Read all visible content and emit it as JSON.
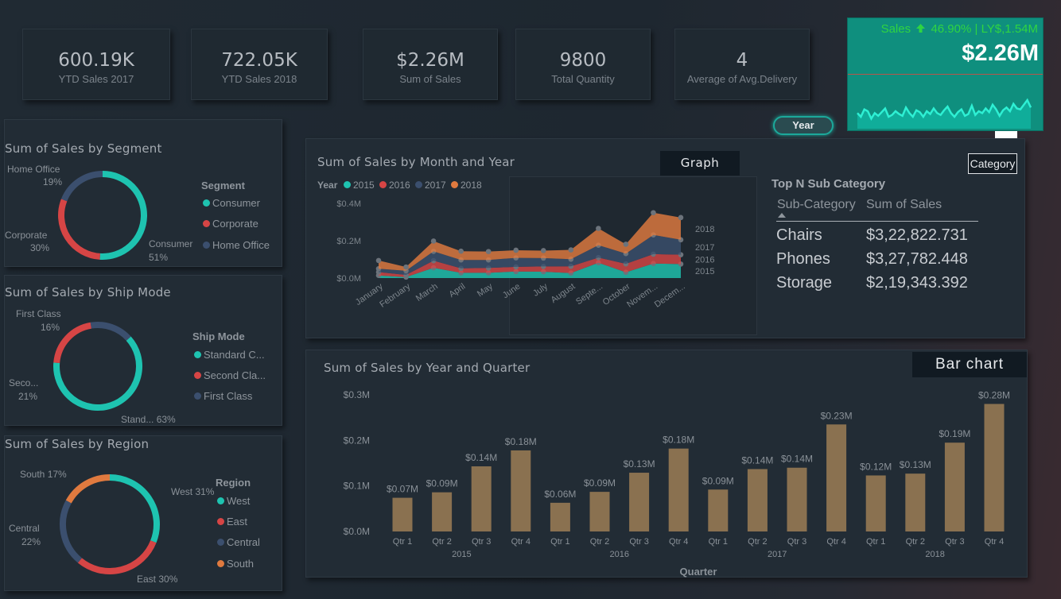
{
  "kpis": [
    {
      "value": "600.19K",
      "label": "YTD Sales 2017"
    },
    {
      "value": "722.05K",
      "label": "YTD Sales 2018"
    },
    {
      "value": "$2.26M",
      "label": "Sum of Sales"
    },
    {
      "value": "9800",
      "label": "Total Quantity"
    },
    {
      "value": "4",
      "label": "Average of Avg.Delivery"
    }
  ],
  "sales_card": {
    "label": "Sales",
    "change": "46.90%",
    "ly": "| LY$,1.54M",
    "value": "$2.26M",
    "arrow": "up-arrow-icon",
    "colors": {
      "bg": "#0e8f7d",
      "text": "#2ecc40",
      "value": "#ffffff"
    },
    "sparkline": [
      0.5,
      0.3,
      0.7,
      0.6,
      0.2,
      0.5,
      0.35,
      0.55,
      0.75,
      0.3,
      0.4,
      0.6,
      0.45,
      0.35,
      0.8,
      0.5,
      0.3,
      0.65,
      0.55,
      0.3,
      0.6,
      0.45,
      0.75,
      0.5,
      0.4,
      0.65,
      0.85,
      0.5,
      0.3,
      0.55,
      0.7,
      0.35,
      0.45,
      0.9,
      0.4,
      0.6,
      0.5,
      0.75,
      0.55,
      0.95,
      0.7,
      0.35,
      0.65,
      0.8,
      0.6,
      1.0,
      0.75,
      0.7,
      0.95,
      1.2,
      0.8
    ]
  },
  "buttons": {
    "year": "Year",
    "more": "…",
    "category": "Category",
    "graph": "Graph",
    "bar_chart": "Bar chart"
  },
  "topn": {
    "title": "Top N Sub Category",
    "col1": "Sub-Category",
    "col2": "Sum of Sales",
    "rows": [
      {
        "name": "Chairs",
        "value": "$3,22,822.731"
      },
      {
        "name": "Phones",
        "value": "$3,27,782.448"
      },
      {
        "name": "Storage",
        "value": "$2,19,343.392"
      }
    ]
  },
  "colors": {
    "teal": "#1ec3b0",
    "red": "#d64545",
    "navy": "#3b4f6e",
    "orange": "#e07a3f",
    "bar": "#8a7150"
  },
  "chart_data": [
    {
      "type": "pie",
      "title": "Sum of Sales by Segment",
      "legend_title": "Segment",
      "legend": [
        "Consumer",
        "Corporate",
        "Home Office"
      ],
      "slices": [
        {
          "name": "Consumer",
          "value": 51,
          "label": "Consumer",
          "pct": "51%",
          "color": "#1ec3b0"
        },
        {
          "name": "Corporate",
          "value": 30,
          "label": "Corporate",
          "pct": "30%",
          "color": "#d64545"
        },
        {
          "name": "Home Office",
          "value": 19,
          "label": "Home Office",
          "pct": "19%",
          "color": "#3b4f6e"
        }
      ]
    },
    {
      "type": "pie",
      "title": "Sum of Sales by Ship Mode",
      "legend_title": "Ship Mode",
      "legend": [
        "Standard C...",
        "Second Cla...",
        "First Class"
      ],
      "slices": [
        {
          "name": "Standard Class",
          "value": 63,
          "label": "Stand... 63%",
          "color": "#1ec3b0"
        },
        {
          "name": "Second Class",
          "value": 21,
          "label": "Seco...",
          "pct": "21%",
          "color": "#d64545"
        },
        {
          "name": "First Class",
          "value": 16,
          "label": "First Class",
          "pct": "16%",
          "color": "#3b4f6e"
        }
      ]
    },
    {
      "type": "pie",
      "title": "Sum of Sales by Region",
      "legend_title": "Region",
      "legend": [
        "West",
        "East",
        "Central",
        "South"
      ],
      "slices": [
        {
          "name": "West",
          "value": 31,
          "label": "West 31%",
          "color": "#1ec3b0"
        },
        {
          "name": "East",
          "value": 30,
          "label": "East 30%",
          "color": "#d64545"
        },
        {
          "name": "Central",
          "value": 22,
          "label": "Central",
          "pct": "22%",
          "color": "#3b4f6e"
        },
        {
          "name": "South",
          "value": 17,
          "label": "South 17%",
          "color": "#e07a3f"
        }
      ]
    },
    {
      "type": "area",
      "title": "Sum of Sales by Month and Year",
      "legend_title": "Year",
      "categories": [
        "January",
        "February",
        "March",
        "April",
        "May",
        "June",
        "July",
        "August",
        "Septe...",
        "October",
        "Novem...",
        "Decem..."
      ],
      "ylim": [
        0,
        0.4
      ],
      "yticks": [
        "$0.0M",
        "$0.2M",
        "$0.4M"
      ],
      "series": [
        {
          "name": "2015",
          "color": "#1ec3b0",
          "values": [
            0.014,
            0.005,
            0.055,
            0.028,
            0.028,
            0.035,
            0.034,
            0.027,
            0.082,
            0.031,
            0.078,
            0.075
          ]
        },
        {
          "name": "2016",
          "color": "#d64545",
          "values": [
            0.018,
            0.012,
            0.038,
            0.024,
            0.026,
            0.025,
            0.028,
            0.036,
            0.028,
            0.045,
            0.05,
            0.05
          ]
        },
        {
          "name": "2017",
          "color": "#3b4f6e",
          "values": [
            0.018,
            0.022,
            0.05,
            0.045,
            0.043,
            0.048,
            0.045,
            0.038,
            0.066,
            0.055,
            0.103,
            0.08
          ]
        },
        {
          "name": "2018",
          "color": "#e07a3f",
          "values": [
            0.044,
            0.02,
            0.055,
            0.047,
            0.045,
            0.041,
            0.04,
            0.05,
            0.09,
            0.05,
            0.119,
            0.119
          ]
        }
      ]
    },
    {
      "type": "bar",
      "title": "Sum of Sales by Year and Quarter",
      "xlabel": "Quarter",
      "ylim": [
        0,
        0.3
      ],
      "yticks": [
        "$0.0M",
        "$0.1M",
        "$0.2M",
        "$0.3M"
      ],
      "groups": [
        "2015",
        "2016",
        "2017",
        "2018"
      ],
      "categories": [
        "Qtr 1",
        "Qtr 2",
        "Qtr 3",
        "Qtr 4",
        "Qtr 1",
        "Qtr 2",
        "Qtr 3",
        "Qtr 4",
        "Qtr 1",
        "Qtr 2",
        "Qtr 3",
        "Qtr 4",
        "Qtr 1",
        "Qtr 2",
        "Qtr 3",
        "Qtr 4"
      ],
      "values": [
        0.074,
        0.086,
        0.143,
        0.178,
        0.063,
        0.087,
        0.129,
        0.182,
        0.092,
        0.137,
        0.14,
        0.235,
        0.123,
        0.127,
        0.195,
        0.28
      ],
      "labels": [
        "$0.07M",
        "$0.09M",
        "$0.14M",
        "$0.18M",
        "$0.06M",
        "$0.09M",
        "$0.13M",
        "$0.18M",
        "$0.09M",
        "$0.14M",
        "$0.14M",
        "$0.23M",
        "$0.12M",
        "$0.13M",
        "$0.19M",
        "$0.28M"
      ]
    }
  ]
}
